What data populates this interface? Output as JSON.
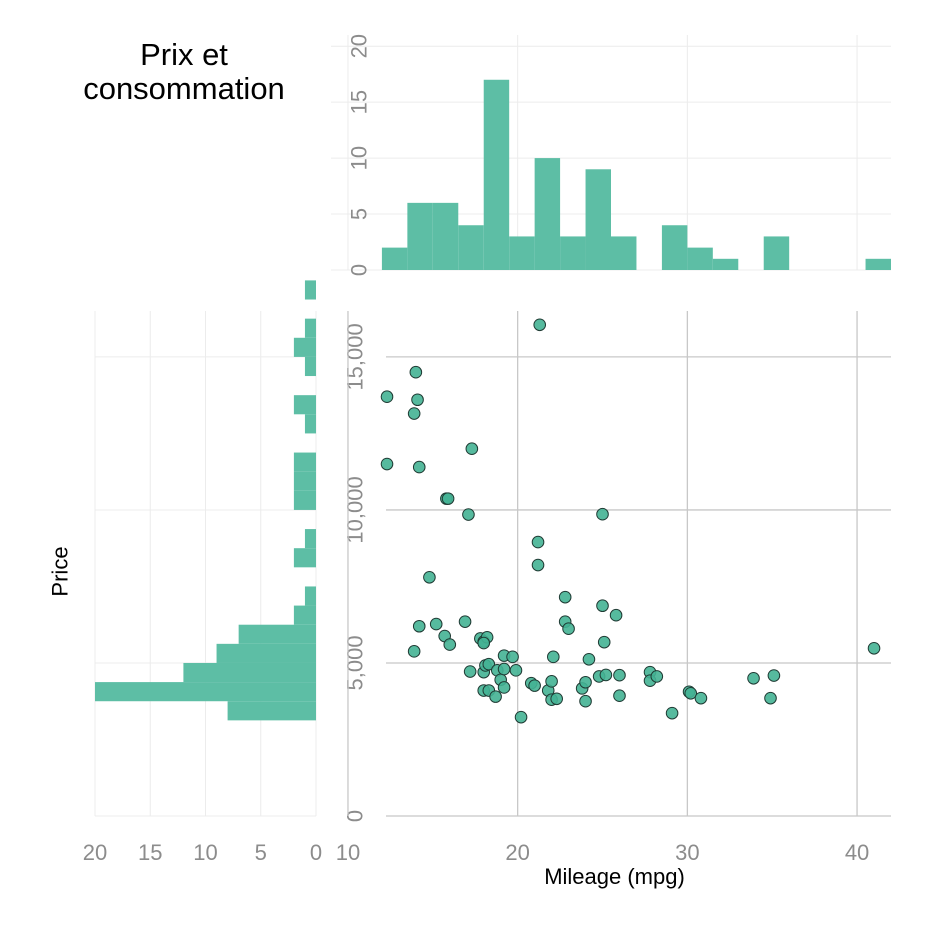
{
  "title": "Prix et\nconsommation",
  "colors": {
    "bar": "#5dbea5",
    "point_fill": "#44b393",
    "point_stroke": "#1f3a33",
    "grid": "#c8c8c8",
    "grid_minor": "#ececec",
    "tick_text": "#8c8c8c"
  },
  "chart_data": [
    {
      "type": "scatter",
      "xlabel": "Mileage (mpg)",
      "ylabel": "Price",
      "xlim": [
        9,
        42
      ],
      "ylim": [
        0,
        16500
      ],
      "xticks": [
        10,
        20,
        30,
        40
      ],
      "xtick_labels": [
        "10",
        "20",
        "30",
        "40"
      ],
      "yticks": [
        0,
        5000,
        10000,
        15000
      ],
      "ytick_labels": [
        "0",
        "5,000",
        "10,000",
        "15,000"
      ],
      "grid": true,
      "points": [
        [
          12.3,
          13700
        ],
        [
          12.3,
          11500
        ],
        [
          13.9,
          13150
        ],
        [
          14.0,
          14500
        ],
        [
          14.1,
          13600
        ],
        [
          14.2,
          11400
        ],
        [
          13.9,
          5380
        ],
        [
          14.2,
          6200
        ],
        [
          14.8,
          7800
        ],
        [
          15.2,
          6270
        ],
        [
          15.8,
          10370
        ],
        [
          15.9,
          10370
        ],
        [
          15.7,
          5880
        ],
        [
          16.0,
          5600
        ],
        [
          16.9,
          6350
        ],
        [
          17.1,
          9850
        ],
        [
          17.3,
          12000
        ],
        [
          17.2,
          4720
        ],
        [
          17.8,
          5800
        ],
        [
          18.0,
          5700
        ],
        [
          18.2,
          5840
        ],
        [
          18.0,
          5650
        ],
        [
          18.0,
          4700
        ],
        [
          18.1,
          4920
        ],
        [
          18.3,
          4960
        ],
        [
          18.0,
          4100
        ],
        [
          18.3,
          4100
        ],
        [
          18.7,
          3900
        ],
        [
          18.8,
          4760
        ],
        [
          19.0,
          4450
        ],
        [
          19.2,
          4200
        ],
        [
          19.2,
          4800
        ],
        [
          19.2,
          5240
        ],
        [
          19.7,
          5200
        ],
        [
          19.9,
          4760
        ],
        [
          20.2,
          3230
        ],
        [
          20.8,
          4340
        ],
        [
          21.0,
          4260
        ],
        [
          21.2,
          8950
        ],
        [
          21.2,
          8200
        ],
        [
          21.3,
          16050
        ],
        [
          21.8,
          4100
        ],
        [
          22.0,
          4400
        ],
        [
          22.0,
          3800
        ],
        [
          22.1,
          5200
        ],
        [
          22.3,
          3830
        ],
        [
          22.8,
          7150
        ],
        [
          22.8,
          6350
        ],
        [
          23.0,
          6120
        ],
        [
          23.8,
          4170
        ],
        [
          24.0,
          3750
        ],
        [
          24.0,
          4370
        ],
        [
          24.2,
          5120
        ],
        [
          24.8,
          4560
        ],
        [
          25.0,
          9860
        ],
        [
          25.0,
          6870
        ],
        [
          25.1,
          5680
        ],
        [
          25.2,
          4610
        ],
        [
          25.8,
          6560
        ],
        [
          26.0,
          4600
        ],
        [
          26.0,
          3930
        ],
        [
          27.8,
          4700
        ],
        [
          27.8,
          4420
        ],
        [
          28.2,
          4560
        ],
        [
          29.1,
          3360
        ],
        [
          30.1,
          4060
        ],
        [
          30.2,
          4010
        ],
        [
          30.8,
          3850
        ],
        [
          33.9,
          4500
        ],
        [
          34.9,
          3850
        ],
        [
          35.1,
          4590
        ],
        [
          41.0,
          5480
        ]
      ]
    },
    {
      "type": "bar",
      "orientation": "vertical",
      "label": "Mileage histogram",
      "bins": [
        12,
        13.5,
        15,
        16.5,
        18,
        19.5,
        21,
        22.5,
        24,
        25.5,
        27,
        28.5,
        30,
        31.5,
        33,
        34.5,
        36,
        37.5,
        39,
        40.5,
        42
      ],
      "counts": [
        2,
        6,
        6,
        4,
        17,
        3,
        10,
        3,
        9,
        3,
        0,
        4,
        2,
        1,
        0,
        3,
        0,
        0,
        0,
        1
      ],
      "xlim": [
        9,
        42
      ],
      "ylim": [
        0,
        21
      ],
      "yticks": [
        0,
        5,
        10,
        15,
        20
      ],
      "ytick_labels": [
        "0",
        "5",
        "10",
        "15",
        "20"
      ]
    },
    {
      "type": "bar",
      "orientation": "horizontal",
      "label": "Price histogram",
      "bin_width": 625,
      "bin_start": 3125,
      "counts": [
        8,
        20,
        12,
        9,
        7,
        2,
        1,
        0,
        2,
        1,
        0,
        2,
        2,
        2,
        0,
        1,
        2,
        0,
        1,
        2,
        1,
        0,
        1
      ],
      "xlim": [
        20,
        0
      ],
      "xticks": [
        20,
        15,
        10,
        5,
        0
      ],
      "xtick_labels": [
        "20",
        "15",
        "10",
        "5",
        "0"
      ]
    }
  ]
}
